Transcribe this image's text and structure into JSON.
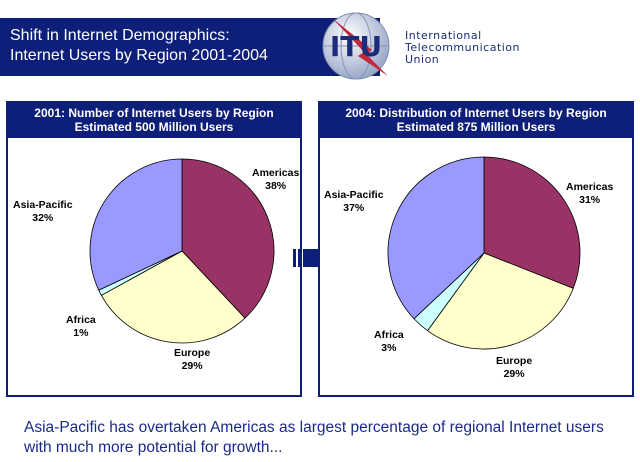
{
  "header": {
    "title_line1": "Shift in Internet Demographics:",
    "title_line2": "Internet Users by Region 2001-2004",
    "logo_text": "ITU",
    "org_line1": "International",
    "org_line2": "Telecommunication",
    "org_line3": "Union"
  },
  "left_panel": {
    "title_line1": "2001: Number of Internet Users by Region",
    "title_line2": "Estimated 500 Million Users"
  },
  "right_panel": {
    "title_line1": "2004: Distribution of Internet Users by Region",
    "title_line2": "Estimated 875 Million Users"
  },
  "caption": "Asia-Pacific has overtaken Americas as largest percentage of regional Internet users with much more potential for growth...",
  "colors": {
    "header_bg": "#0d1f78",
    "americas": "#993366",
    "europe": "#ffffcc",
    "africa": "#ccffff",
    "asia_pacific": "#9999ff"
  },
  "chart_data": [
    {
      "type": "pie",
      "title": "2001: Number of Internet Users by Region",
      "subtitle": "Estimated 500 Million Users",
      "slices": [
        {
          "label": "Americas",
          "value": 38,
          "display": "38%"
        },
        {
          "label": "Europe",
          "value": 29,
          "display": "29%"
        },
        {
          "label": "Africa",
          "value": 1,
          "display": "1%"
        },
        {
          "label": "Asia-Pacific",
          "value": 32,
          "display": "32%"
        }
      ]
    },
    {
      "type": "pie",
      "title": "2004: Distribution of Internet Users by Region",
      "subtitle": "Estimated 875 Million Users",
      "slices": [
        {
          "label": "Americas",
          "value": 31,
          "display": "31%"
        },
        {
          "label": "Europe",
          "value": 29,
          "display": "29%"
        },
        {
          "label": "Africa",
          "value": 3,
          "display": "3%"
        },
        {
          "label": "Asia-Pacific",
          "value": 37,
          "display": "37%"
        }
      ]
    }
  ]
}
